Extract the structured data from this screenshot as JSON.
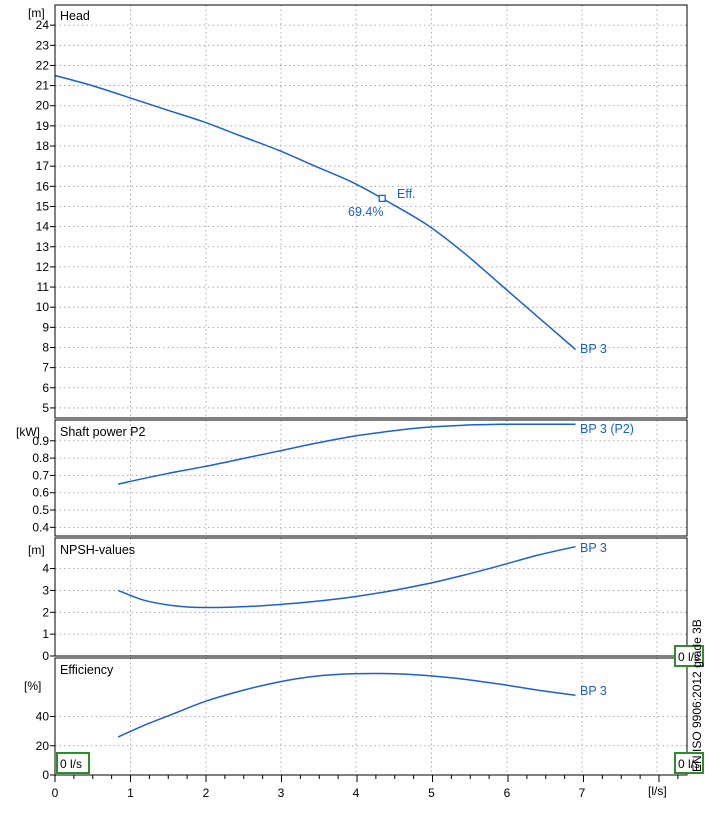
{
  "chart_data": [
    {
      "type": "line",
      "title": "Head",
      "yunit": "[m]",
      "xlim": [
        0,
        8.5
      ],
      "ylim": [
        4.5,
        25
      ],
      "yticks": [
        5,
        6,
        7,
        8,
        9,
        10,
        11,
        12,
        13,
        14,
        15,
        16,
        17,
        18,
        19,
        20,
        21,
        22,
        23,
        24
      ],
      "grid": true,
      "series": [
        {
          "name": "BP 3",
          "color": "#1a5fd6",
          "x": [
            0,
            0.5,
            1.0,
            1.5,
            2.0,
            2.5,
            3.0,
            3.5,
            4.0,
            4.4,
            5.0,
            5.5,
            6.0,
            6.5,
            7.0
          ],
          "y": [
            21.5,
            21.0,
            20.4,
            19.8,
            19.2,
            18.5,
            17.8,
            17.0,
            16.2,
            15.4,
            14.1,
            12.7,
            11.1,
            9.5,
            7.9
          ]
        }
      ],
      "marker": {
        "x": 4.4,
        "y": 15.4,
        "label": "Eff.",
        "value": "69.4%"
      }
    },
    {
      "type": "line",
      "title": "Shaft power P2",
      "yunit": "[kW]",
      "xlim": [
        0,
        8.5
      ],
      "ylim": [
        0.35,
        1.02
      ],
      "yticks": [
        "0.4",
        "0.5",
        "0.6",
        "0.7",
        "0.8",
        "0.9"
      ],
      "grid": true,
      "series": [
        {
          "name": "BP 3 (P2)",
          "color": "#1a5fd6",
          "x": [
            0.85,
            1.5,
            2.0,
            2.5,
            3.0,
            3.5,
            4.0,
            4.5,
            5.0,
            5.5,
            6.0,
            6.5,
            7.0
          ],
          "y": [
            0.65,
            0.71,
            0.75,
            0.795,
            0.84,
            0.885,
            0.925,
            0.955,
            0.978,
            0.99,
            0.995,
            0.995,
            0.995
          ]
        }
      ]
    },
    {
      "type": "line",
      "title": "NPSH-values",
      "yunit": "[m]",
      "xlim": [
        0,
        8.5
      ],
      "ylim": [
        0,
        5.4
      ],
      "yticks": [
        0,
        1,
        2,
        3,
        4
      ],
      "grid": true,
      "series": [
        {
          "name": "BP 3",
          "color": "#1a5fd6",
          "x": [
            0.85,
            1.2,
            1.6,
            2.0,
            2.5,
            3.0,
            3.5,
            4.0,
            4.5,
            5.0,
            5.5,
            6.0,
            6.5,
            7.0
          ],
          "y": [
            3.0,
            2.55,
            2.3,
            2.22,
            2.25,
            2.35,
            2.5,
            2.7,
            2.97,
            3.3,
            3.7,
            4.15,
            4.62,
            5.0
          ]
        }
      ]
    },
    {
      "type": "line",
      "title": "Efficiency",
      "yunit": "[%]",
      "xlim": [
        0,
        8.5
      ],
      "ylim": [
        0,
        80
      ],
      "yticks": [
        0,
        20,
        40
      ],
      "grid": true,
      "xlabel": "[l/s]",
      "xticks": [
        0,
        1,
        2,
        3,
        4,
        5,
        6,
        7
      ],
      "series": [
        {
          "name": "BP 3",
          "color": "#1a5fd6",
          "x": [
            0.85,
            1.2,
            1.6,
            2.0,
            2.5,
            3.0,
            3.5,
            4.0,
            4.5,
            5.0,
            5.5,
            6.0,
            6.5,
            7.0
          ],
          "y": [
            26,
            34,
            42,
            50,
            57.5,
            63.5,
            67.5,
            69.2,
            69.3,
            68.0,
            65.5,
            62.0,
            58.0,
            54.5
          ]
        }
      ]
    }
  ],
  "side_text": "EN ISO 9906:2012 grade 3B",
  "boxes": {
    "left_bottom": "0 l/s",
    "right_top": "0 l/s",
    "right_bottom": "0 l/s"
  },
  "colors": {
    "curve": "#1a5fd6",
    "box_border": "#2e8b2e"
  }
}
